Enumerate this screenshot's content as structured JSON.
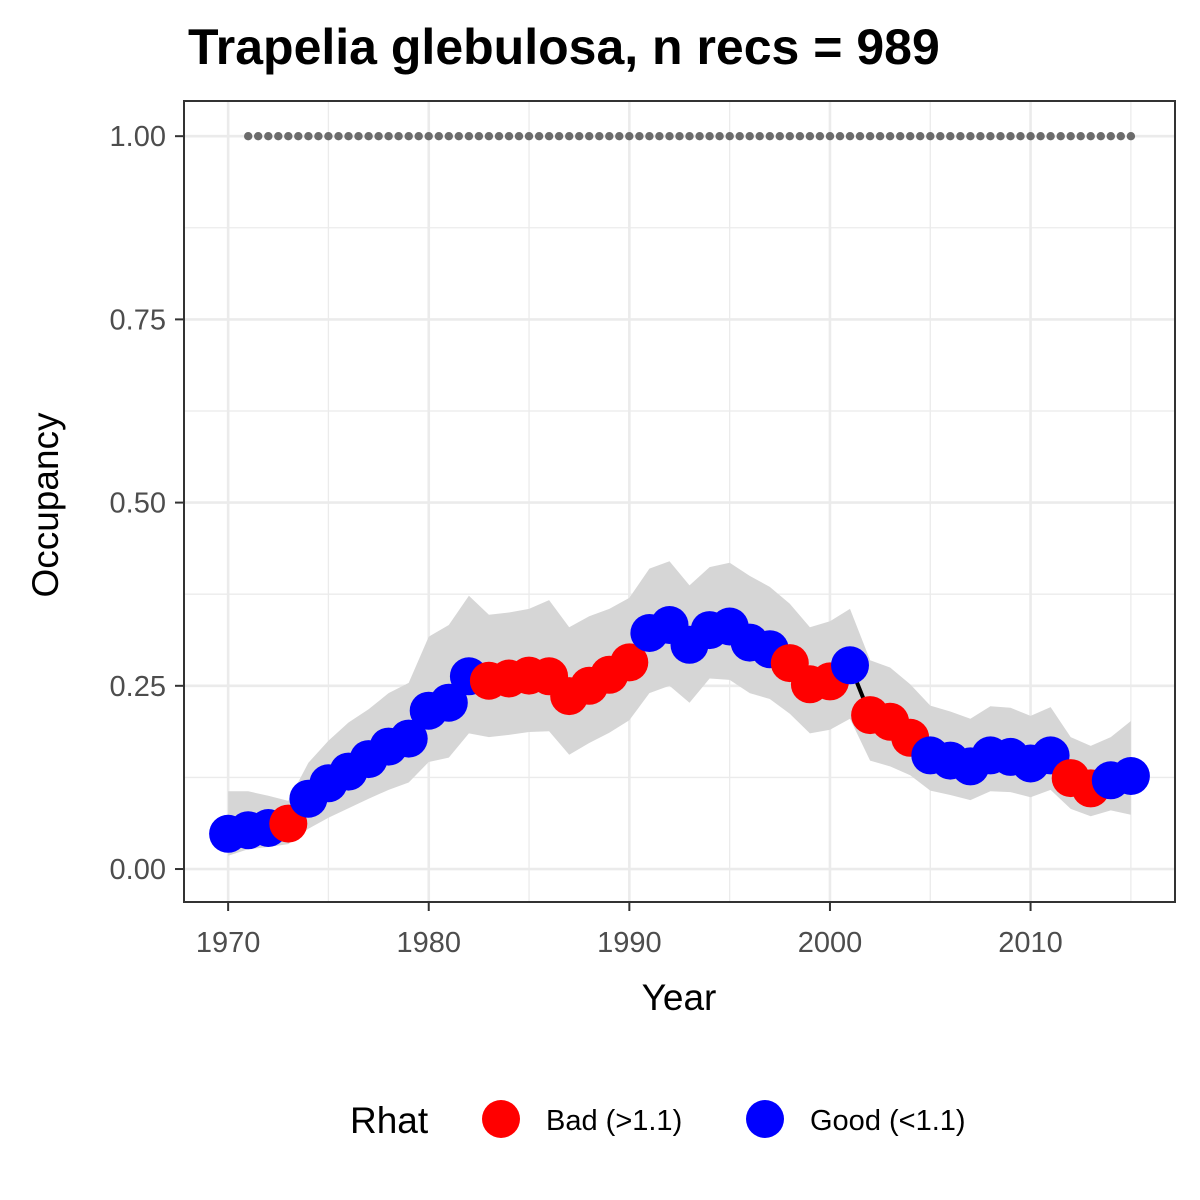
{
  "chart_data": {
    "type": "line",
    "title": "Trapelia glebulosa, n recs = 989",
    "xlabel": "Year",
    "ylabel": "Occupancy",
    "xlim": [
      1967.8,
      2017.2
    ],
    "ylim": [
      -0.045,
      1.048
    ],
    "x_ticks": [
      1970,
      1980,
      1990,
      2000,
      2010
    ],
    "x_tick_labels": [
      "1970",
      "1980",
      "1990",
      "2000",
      "2010"
    ],
    "y_ticks": [
      0,
      0.25,
      0.5,
      0.75,
      1.0
    ],
    "y_tick_labels": [
      "0.00",
      "0.25",
      "0.50",
      "0.75",
      "1.00"
    ],
    "grid": true,
    "legend": {
      "title": "Rhat",
      "position": "bottom",
      "entries": [
        {
          "key": "bad",
          "label": "Bad (>1.1)",
          "color": "#ff0000"
        },
        {
          "key": "good",
          "label": "Good (<1.1)",
          "color": "#0000ff"
        }
      ]
    },
    "colors": {
      "bad": "#ff0000",
      "good": "#0000ff",
      "ribbon": "#d6d6d6",
      "line": "#000000",
      "reference": "#6b6b6b",
      "grid": "#ebebeb",
      "panel_border": "#333333"
    },
    "reference_line": {
      "y": 1.0,
      "x_start": 1971,
      "x_end": 2015,
      "style": "dotted"
    },
    "series": [
      {
        "x": [
          1970,
          1971,
          1972,
          1973,
          1974,
          1975,
          1976,
          1977,
          1978,
          1979,
          1980,
          1981,
          1982,
          1983,
          1984,
          1985,
          1986,
          1987,
          1988,
          1989,
          1990,
          1991,
          1992,
          1993,
          1994,
          1995,
          1996,
          1997,
          1998,
          1999,
          2000,
          2001,
          2002,
          2003,
          2004,
          2005,
          2006,
          2007,
          2008,
          2009,
          2010,
          2011,
          2012,
          2013,
          2014,
          2015
        ],
        "y": [
          0.048,
          0.053,
          0.056,
          0.062,
          0.096,
          0.117,
          0.133,
          0.15,
          0.167,
          0.178,
          0.216,
          0.227,
          0.263,
          0.257,
          0.26,
          0.264,
          0.263,
          0.236,
          0.25,
          0.265,
          0.282,
          0.322,
          0.333,
          0.306,
          0.326,
          0.331,
          0.309,
          0.3,
          0.281,
          0.252,
          0.256,
          0.278,
          0.21,
          0.201,
          0.179,
          0.155,
          0.148,
          0.14,
          0.155,
          0.153,
          0.144,
          0.155,
          0.124,
          0.11,
          0.121,
          0.127
        ],
        "lower": [
          0.018,
          0.027,
          0.03,
          0.034,
          0.055,
          0.07,
          0.083,
          0.096,
          0.108,
          0.118,
          0.146,
          0.152,
          0.185,
          0.18,
          0.183,
          0.187,
          0.188,
          0.156,
          0.172,
          0.186,
          0.203,
          0.24,
          0.25,
          0.227,
          0.26,
          0.258,
          0.24,
          0.232,
          0.212,
          0.185,
          0.19,
          0.205,
          0.148,
          0.14,
          0.128,
          0.107,
          0.101,
          0.094,
          0.106,
          0.105,
          0.098,
          0.108,
          0.082,
          0.072,
          0.08,
          0.074
        ],
        "upper": [
          0.106,
          0.106,
          0.1,
          0.093,
          0.145,
          0.175,
          0.2,
          0.218,
          0.24,
          0.254,
          0.317,
          0.333,
          0.373,
          0.347,
          0.35,
          0.355,
          0.367,
          0.33,
          0.345,
          0.355,
          0.37,
          0.41,
          0.42,
          0.387,
          0.412,
          0.418,
          0.4,
          0.385,
          0.362,
          0.33,
          0.338,
          0.355,
          0.285,
          0.275,
          0.252,
          0.223,
          0.215,
          0.205,
          0.222,
          0.22,
          0.209,
          0.221,
          0.18,
          0.168,
          0.18,
          0.202
        ],
        "rhat": [
          "good",
          "good",
          "good",
          "bad",
          "good",
          "good",
          "good",
          "good",
          "good",
          "good",
          "good",
          "good",
          "good",
          "bad",
          "bad",
          "bad",
          "bad",
          "bad",
          "bad",
          "bad",
          "bad",
          "good",
          "good",
          "good",
          "good",
          "good",
          "good",
          "good",
          "bad",
          "bad",
          "bad",
          "good",
          "bad",
          "bad",
          "bad",
          "good",
          "good",
          "good",
          "good",
          "good",
          "good",
          "good",
          "bad",
          "bad",
          "good",
          "good"
        ]
      }
    ]
  }
}
